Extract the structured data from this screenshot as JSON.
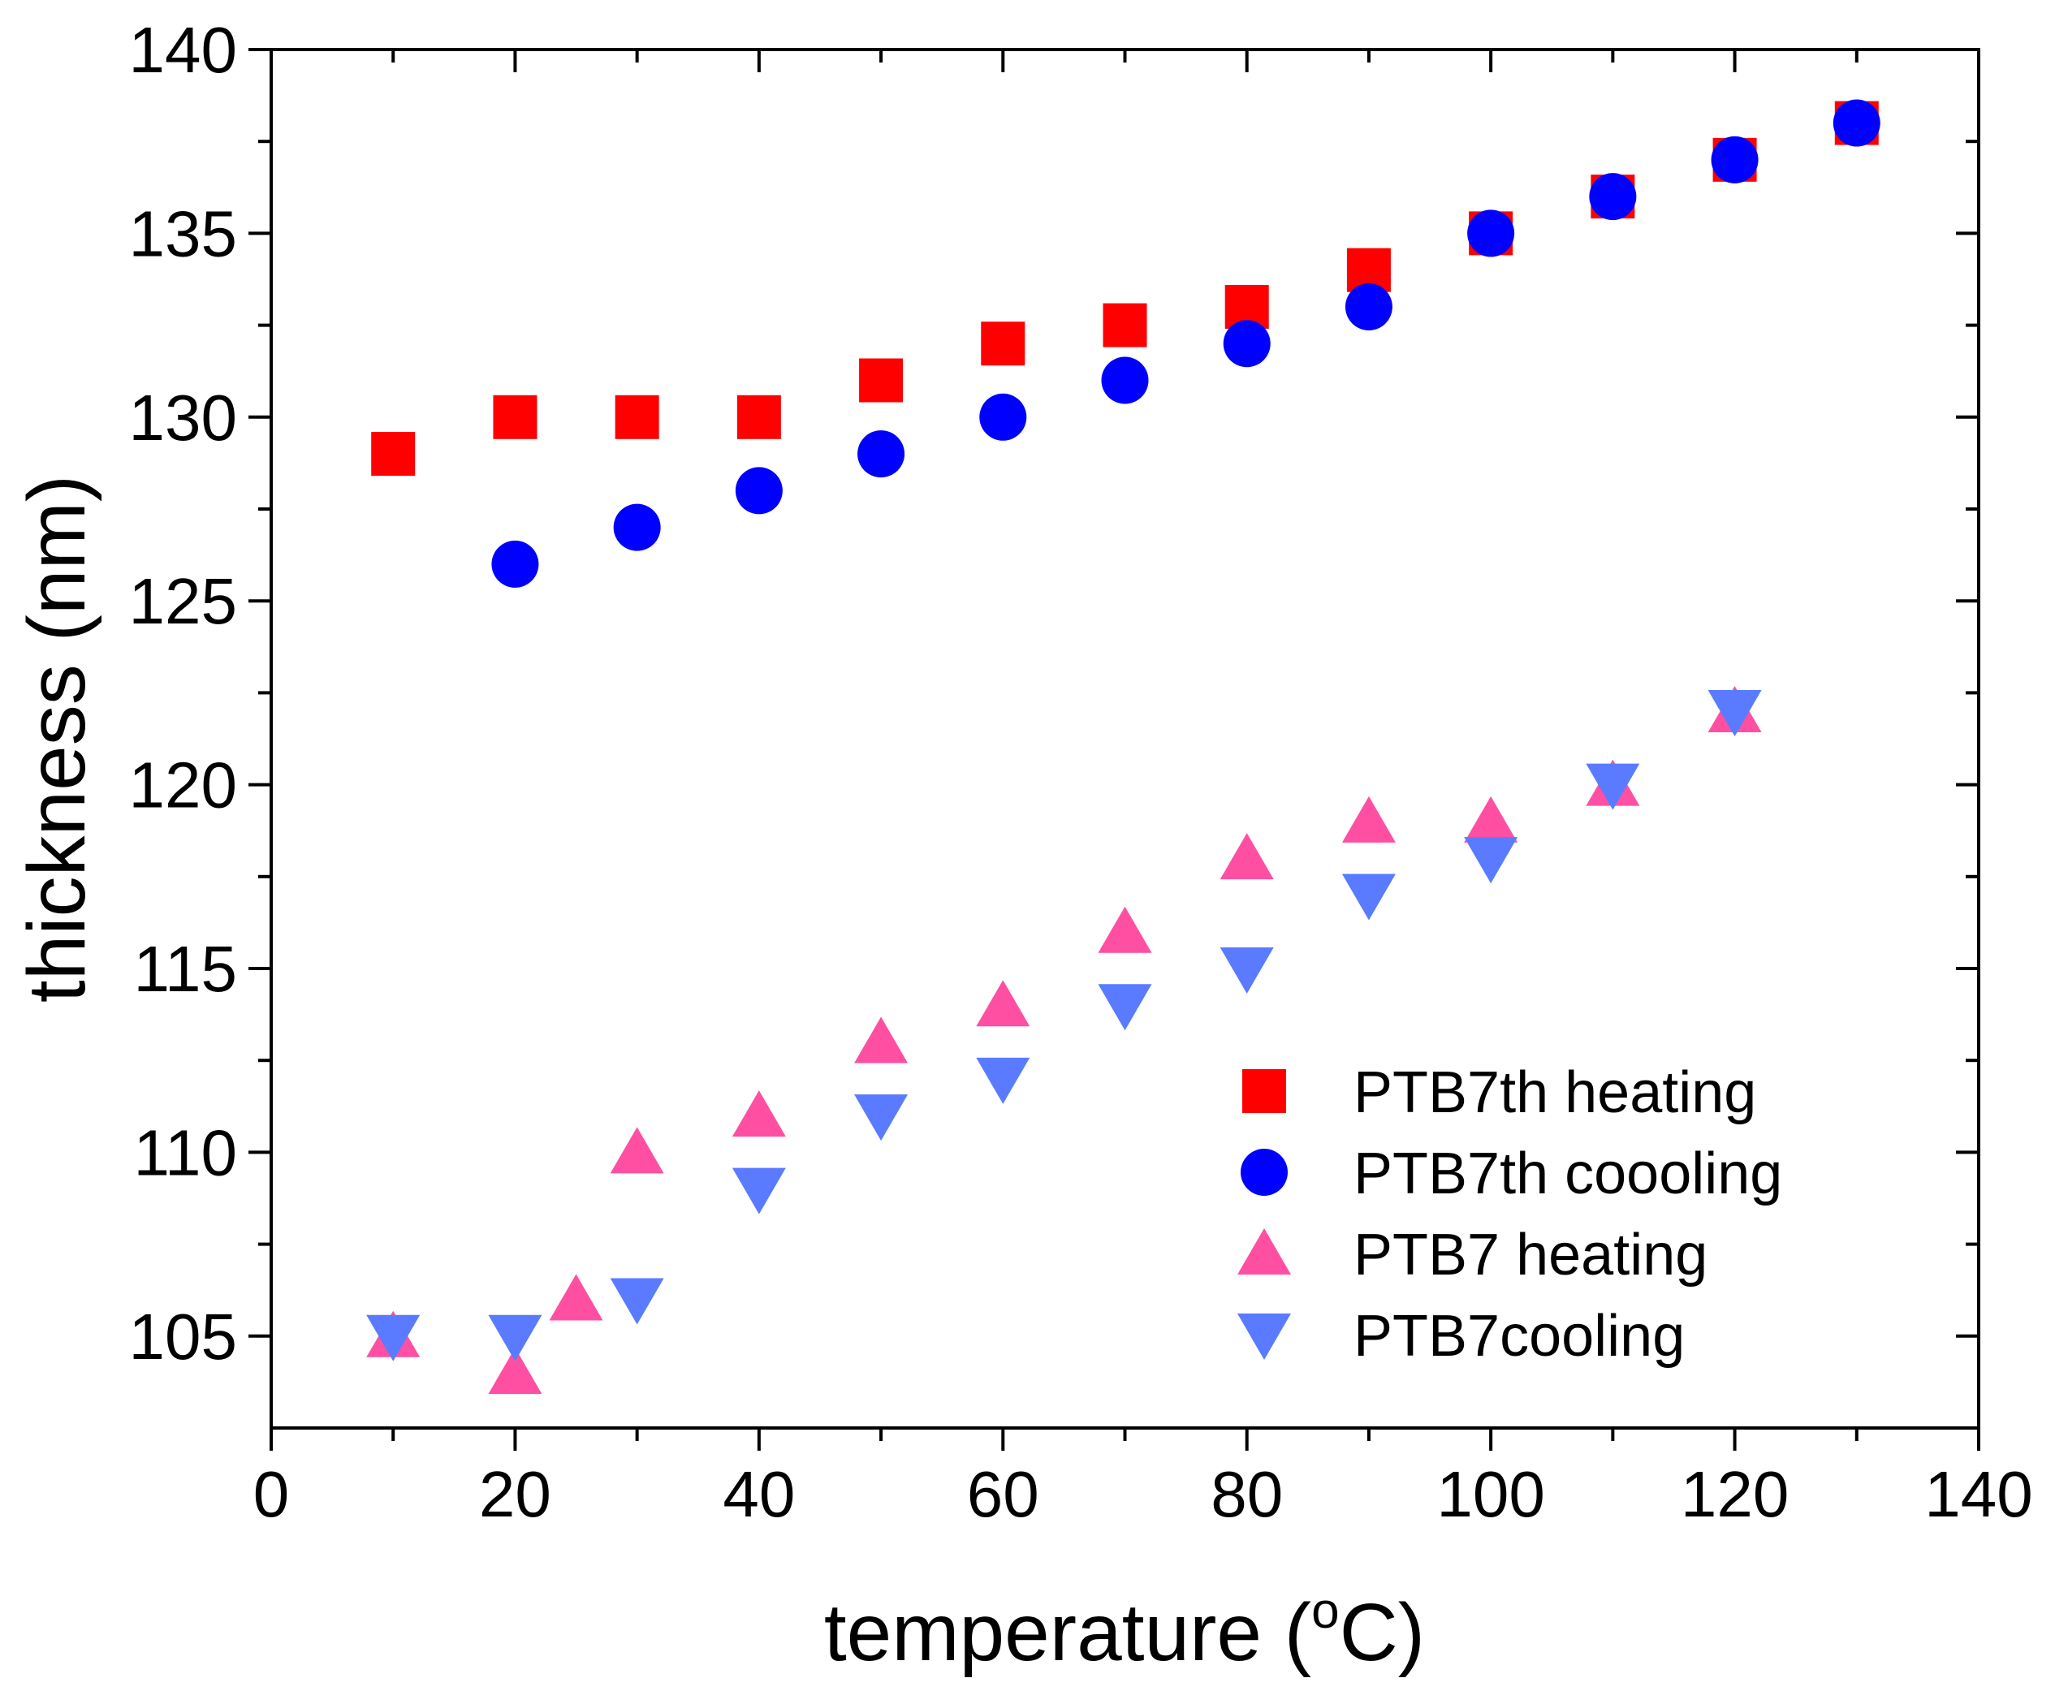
{
  "chart_data": {
    "type": "scatter",
    "title": "",
    "xlabel": {
      "before": "temperature (",
      "superscript": "o",
      "after": "C)"
    },
    "ylabel": "thickness (nm)",
    "xlim": [
      0,
      140
    ],
    "ylim": [
      102.5,
      140
    ],
    "xticks": [
      0,
      20,
      40,
      60,
      80,
      100,
      120,
      140
    ],
    "yticks": [
      105,
      110,
      115,
      120,
      125,
      130,
      135,
      140
    ],
    "x_minor_step": 10,
    "y_minor_step": 2.5,
    "grid": false,
    "legend_position": "lower right",
    "series": [
      {
        "name": "PTB7th heating",
        "marker": "square",
        "color": "#ff0000",
        "points": [
          [
            10,
            129
          ],
          [
            20,
            130
          ],
          [
            30,
            130
          ],
          [
            40,
            130
          ],
          [
            50,
            131
          ],
          [
            60,
            132
          ],
          [
            70,
            132.5
          ],
          [
            80,
            133
          ],
          [
            90,
            134
          ],
          [
            100,
            135
          ],
          [
            110,
            136
          ],
          [
            120,
            137
          ],
          [
            130,
            138
          ]
        ]
      },
      {
        "name": "PTB7th coooling",
        "marker": "circle",
        "color": "#0000ff",
        "points": [
          [
            20,
            126
          ],
          [
            30,
            127
          ],
          [
            40,
            128
          ],
          [
            50,
            129
          ],
          [
            60,
            130
          ],
          [
            70,
            131
          ],
          [
            80,
            132
          ],
          [
            90,
            133
          ],
          [
            100,
            135
          ],
          [
            110,
            136
          ],
          [
            120,
            137
          ],
          [
            130,
            138
          ]
        ]
      },
      {
        "name": "PTB7 heating",
        "marker": "triangle-up",
        "color": "#ff4fa3",
        "points": [
          [
            10,
            105
          ],
          [
            20,
            104
          ],
          [
            25,
            106
          ],
          [
            30,
            110
          ],
          [
            40,
            111
          ],
          [
            50,
            113
          ],
          [
            60,
            114
          ],
          [
            70,
            116
          ],
          [
            80,
            118
          ],
          [
            90,
            119
          ],
          [
            100,
            119
          ],
          [
            110,
            120
          ],
          [
            120,
            122
          ]
        ]
      },
      {
        "name": "PTB7cooling",
        "marker": "triangle-down",
        "color": "#5a7bff",
        "points": [
          [
            10,
            105
          ],
          [
            20,
            105
          ],
          [
            30,
            106
          ],
          [
            40,
            109
          ],
          [
            50,
            111
          ],
          [
            60,
            112
          ],
          [
            70,
            114
          ],
          [
            80,
            115
          ],
          [
            90,
            117
          ],
          [
            100,
            118
          ],
          [
            110,
            120
          ],
          [
            120,
            122
          ]
        ]
      }
    ]
  }
}
